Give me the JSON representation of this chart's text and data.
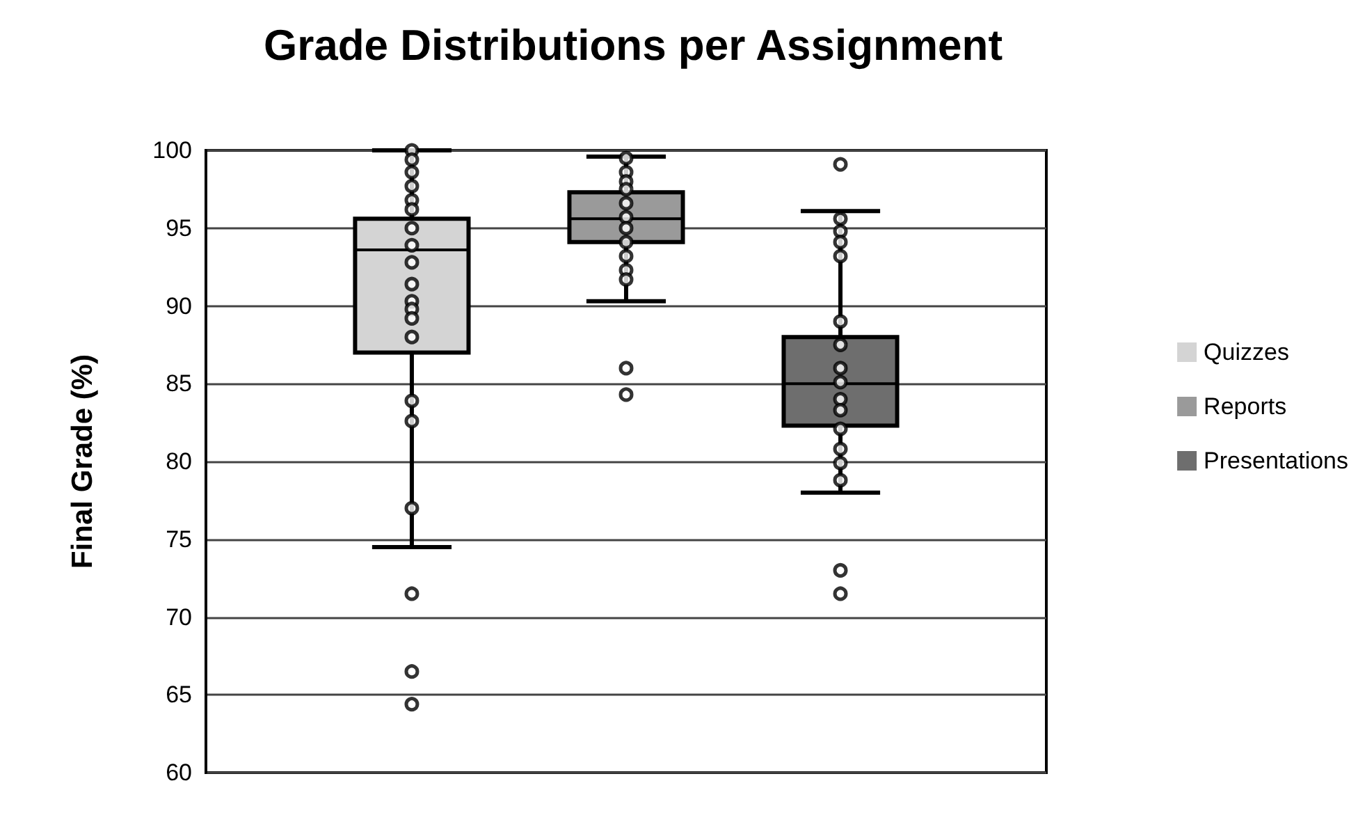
{
  "chart_data": {
    "type": "box",
    "title": "Grade Distributions per Assignment",
    "ylabel": "Final Grade (%)",
    "categories": [
      null
    ],
    "series": [
      {
        "name": "Quizzes",
        "color": "#d4d4d4",
        "boxes": [
          {
            "low": 74.5,
            "q1": 87,
            "median": 93.6,
            "q3": 95.6,
            "high": 100,
            "outliers": [
              100,
              99.4,
              98.6,
              97.7,
              96.8,
              96.2,
              95,
              93.9,
              92.8,
              91.4,
              90.3,
              89.8,
              89.2,
              88,
              83.9,
              82.6,
              77,
              71.5,
              66.5,
              64.4
            ]
          }
        ]
      },
      {
        "name": "Reports",
        "color": "#9a9a9a",
        "boxes": [
          {
            "low": 90.3,
            "q1": 94.1,
            "median": 95.6,
            "q3": 97.3,
            "high": 99.6,
            "outliers": [
              99.5,
              98.6,
              98,
              97.5,
              96.6,
              95.7,
              95,
              94.1,
              93.2,
              92.3,
              91.7,
              86,
              84.3
            ]
          }
        ]
      },
      {
        "name": "Presentations",
        "color": "#6e6e6e",
        "boxes": [
          {
            "low": 78,
            "q1": 82.3,
            "median": 85,
            "q3": 88,
            "high": 96.1,
            "outliers": [
              99.1,
              95.6,
              94.8,
              94.1,
              93.2,
              89,
              87.5,
              86,
              85.1,
              84,
              83.3,
              82.1,
              80.8,
              79.9,
              78.8,
              73,
              71.5
            ]
          }
        ]
      }
    ],
    "ylim": [
      60,
      100
    ],
    "yticks": [
      60,
      65,
      70,
      75,
      80,
      85,
      90,
      95,
      100
    ],
    "grid": "y",
    "legend": "right",
    "tick_labels": "y"
  }
}
